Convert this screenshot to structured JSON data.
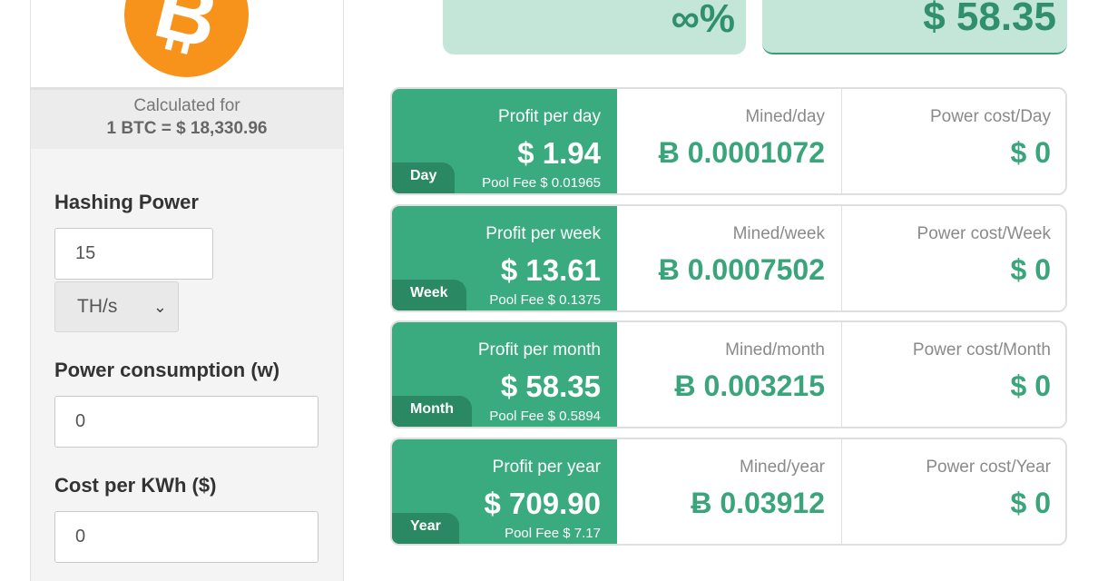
{
  "sidebar": {
    "logo_icon": "bitcoin-logo-icon",
    "calculated_for_label": "Calculated for",
    "calculated_for_value": "1 BTC = $ 18,330.96",
    "hashing_power_label": "Hashing Power",
    "hashing_power_value": "15",
    "hashing_unit_value": "TH/s",
    "power_consumption_label": "Power consumption (w)",
    "power_consumption_value": "0",
    "cost_per_kwh_label": "Cost per KWh ($)",
    "cost_per_kwh_value": "0"
  },
  "summary": {
    "ratio_value": "∞%",
    "monthly_profit_value": "$ 58.35"
  },
  "rows": [
    {
      "profit_label": "Profit per day",
      "profit_value": "$ 1.94",
      "period_tag": "Day",
      "pool_fee": "Pool Fee $ 0.01965",
      "mined_label": "Mined/day",
      "mined_value": "Ƀ 0.0001072",
      "power_label": "Power cost/Day",
      "power_value": "$ 0"
    },
    {
      "profit_label": "Profit per week",
      "profit_value": "$ 13.61",
      "period_tag": "Week",
      "pool_fee": "Pool Fee $ 0.1375",
      "mined_label": "Mined/week",
      "mined_value": "Ƀ 0.0007502",
      "power_label": "Power cost/Week",
      "power_value": "$ 0"
    },
    {
      "profit_label": "Profit per month",
      "profit_value": "$ 58.35",
      "period_tag": "Month",
      "pool_fee": "Pool Fee $ 0.5894",
      "mined_label": "Mined/month",
      "mined_value": "Ƀ 0.003215",
      "power_label": "Power cost/Month",
      "power_value": "$ 0"
    },
    {
      "profit_label": "Profit per year",
      "profit_value": "$ 709.90",
      "period_tag": "Year",
      "pool_fee": "Pool Fee $ 7.17",
      "mined_label": "Mined/year",
      "mined_value": "Ƀ 0.03912",
      "power_label": "Power cost/Year",
      "power_value": "$ 0"
    }
  ],
  "colors": {
    "accent_green": "#3aab7f",
    "dark_green": "#2a8962",
    "light_green": "#c3e6d8",
    "bitcoin_orange": "#f7931a"
  }
}
